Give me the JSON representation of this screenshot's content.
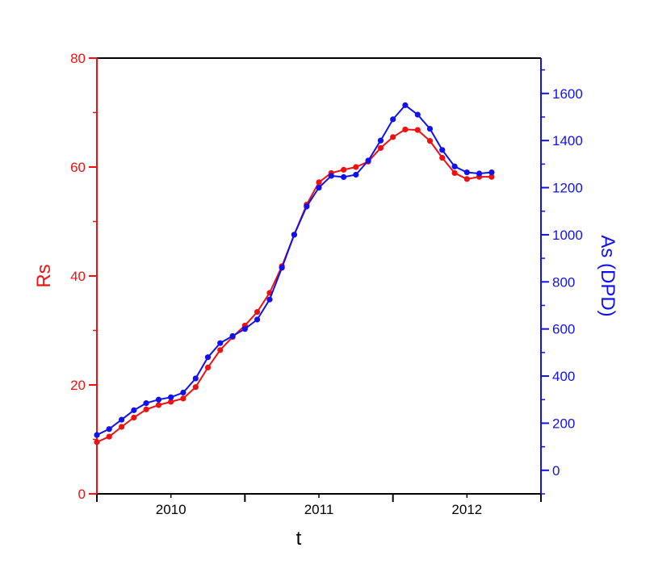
{
  "chart_data": {
    "type": "line",
    "xlabel": "t",
    "ylabel_left": "Rs",
    "ylabel_right": "As (DPD)",
    "x_ticks": [
      {
        "value": 2010.0,
        "label": "2010"
      },
      {
        "value": 2011.0,
        "label": "2011"
      },
      {
        "value": 2012.0,
        "label": "2012"
      }
    ],
    "xlim": [
      2009.5,
      2012.5
    ],
    "ylim_left": [
      0,
      80
    ],
    "ylim_right": [
      -100,
      1750
    ],
    "yticks_left": [
      {
        "value": 0,
        "label": "0"
      },
      {
        "value": 20,
        "label": "20"
      },
      {
        "value": 40,
        "label": "40"
      },
      {
        "value": 60,
        "label": "60"
      },
      {
        "value": 80,
        "label": "80"
      }
    ],
    "yticks_right": [
      {
        "value": 0,
        "label": "0"
      },
      {
        "value": 200,
        "label": "200"
      },
      {
        "value": 400,
        "label": "400"
      },
      {
        "value": 600,
        "label": "600"
      },
      {
        "value": 800,
        "label": "800"
      },
      {
        "value": 1000,
        "label": "1000"
      },
      {
        "value": 1200,
        "label": "1200"
      },
      {
        "value": 1400,
        "label": "1400"
      },
      {
        "value": 1600,
        "label": "1600"
      }
    ],
    "series": [
      {
        "axis": "left",
        "color": "#ee1111",
        "x": [
          2009.5,
          2009.583,
          2009.667,
          2009.75,
          2009.833,
          2009.917,
          2010.0,
          2010.083,
          2010.167,
          2010.25,
          2010.333,
          2010.417,
          2010.5,
          2010.583,
          2010.667,
          2010.75,
          2010.833,
          2010.917,
          2011.0,
          2011.083,
          2011.167,
          2011.25,
          2011.333,
          2011.417,
          2011.5,
          2011.583,
          2011.667,
          2011.75,
          2011.833,
          2011.917,
          2012.0,
          2012.083,
          2012.167
        ],
        "y": [
          9.5,
          10.5,
          12.3,
          14.0,
          15.5,
          16.3,
          16.9,
          17.5,
          19.6,
          23.2,
          26.4,
          28.8,
          30.9,
          33.4,
          36.9,
          41.8,
          47.6,
          53.1,
          57.2,
          58.9,
          59.5,
          60.0,
          61.0,
          63.5,
          65.5,
          66.9,
          66.8,
          64.8,
          61.7,
          58.9,
          57.8,
          58.2,
          58.2
        ]
      },
      {
        "axis": "right",
        "color": "#1111ee",
        "x": [
          2009.5,
          2009.583,
          2009.667,
          2009.75,
          2009.833,
          2009.917,
          2010.0,
          2010.083,
          2010.167,
          2010.25,
          2010.333,
          2010.417,
          2010.5,
          2010.583,
          2010.667,
          2010.75,
          2010.833,
          2010.917,
          2011.0,
          2011.083,
          2011.167,
          2011.25,
          2011.333,
          2011.417,
          2011.5,
          2011.583,
          2011.667,
          2011.75,
          2011.833,
          2011.917,
          2012.0,
          2012.083,
          2012.167
        ],
        "y": [
          150,
          175,
          215,
          255,
          285,
          300,
          310,
          330,
          390,
          480,
          540,
          570,
          600,
          640,
          725,
          860,
          1000,
          1120,
          1200,
          1250,
          1245,
          1255,
          1315,
          1400,
          1490,
          1550,
          1510,
          1450,
          1360,
          1290,
          1265,
          1260,
          1265
        ]
      }
    ]
  }
}
